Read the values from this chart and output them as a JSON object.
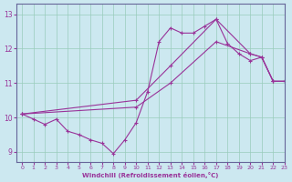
{
  "xlabel": "Windchill (Refroidissement éolien,°C)",
  "xlim": [
    -0.5,
    23
  ],
  "ylim": [
    8.7,
    13.3
  ],
  "yticks": [
    9,
    10,
    11,
    12,
    13
  ],
  "xticks": [
    0,
    1,
    2,
    3,
    4,
    5,
    6,
    7,
    8,
    9,
    10,
    11,
    12,
    13,
    14,
    15,
    16,
    17,
    18,
    19,
    20,
    21,
    22,
    23
  ],
  "background_color": "#cce8f0",
  "grid_color": "#99ccbb",
  "line_color": "#993399",
  "line1_x": [
    0,
    1,
    2,
    3,
    4,
    5,
    6,
    7,
    8,
    9,
    10,
    11,
    12,
    13,
    14,
    15,
    16,
    17,
    18,
    19,
    20,
    21,
    22,
    23
  ],
  "line1_y": [
    10.1,
    9.95,
    9.8,
    9.95,
    9.6,
    9.5,
    9.35,
    9.25,
    8.95,
    9.35,
    9.85,
    10.75,
    12.2,
    12.6,
    12.45,
    12.45,
    12.65,
    12.85,
    12.15,
    11.85,
    11.65,
    11.75,
    11.05,
    11.05
  ],
  "line2_x": [
    0,
    10,
    13,
    17,
    20,
    21,
    22,
    23
  ],
  "line2_y": [
    10.1,
    10.5,
    11.5,
    12.85,
    11.85,
    11.75,
    11.05,
    11.05
  ],
  "line3_x": [
    0,
    10,
    13,
    17,
    20,
    21,
    22,
    23
  ],
  "line3_y": [
    10.1,
    10.3,
    11.0,
    12.2,
    11.85,
    11.75,
    11.05,
    11.05
  ]
}
